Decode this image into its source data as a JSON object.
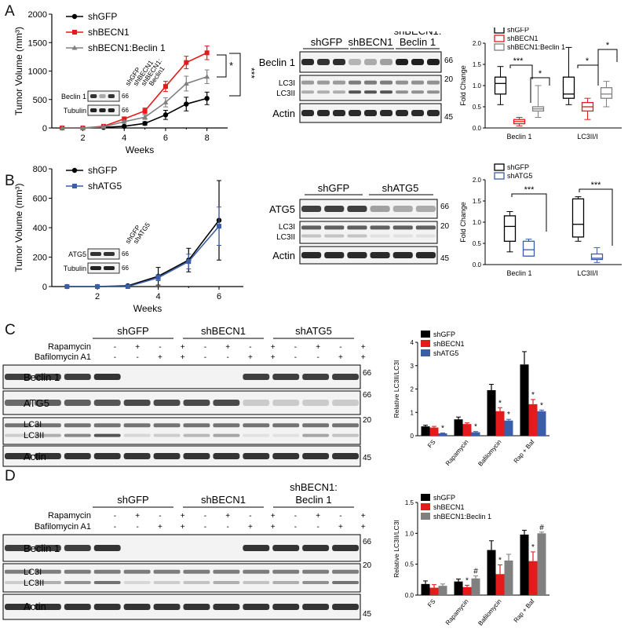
{
  "figure": {
    "panel_labels": [
      "A",
      "B",
      "C",
      "D"
    ]
  },
  "colors": {
    "shGFP": "#000000",
    "shBECN1": "#e41a1c",
    "shBECN1_rescue": "#808080",
    "shATG5": "#3a5ea8"
  },
  "panelA": {
    "growth": {
      "ylabel": "Tumor Volume (mm³)",
      "xlabel": "Weeks",
      "legend": [
        "shGFP",
        "shBECN1",
        "shBECN1:Beclin 1"
      ],
      "sig": [
        "*",
        "***"
      ],
      "inset": {
        "lanes": [
          "shGFP",
          "shBECN1",
          "shBECN1:",
          "Beclin1"
        ],
        "rows": [
          "Beclin 1",
          "Tubulin"
        ],
        "mw": [
          "66",
          "66"
        ]
      }
    },
    "blot": {
      "groups": [
        "shGFP",
        "shBECN1",
        "shBECN1:",
        "Beclin 1"
      ],
      "rows": [
        "Beclin 1",
        "LC3I",
        "LC3II",
        "Actin"
      ],
      "mw": [
        "66",
        "20",
        "45"
      ]
    },
    "box": {
      "ylabel": "Fold Change",
      "legend": [
        "shGFP",
        "shBECN1",
        "shBECN1:Beclin 1"
      ],
      "categories": [
        "Beclin 1",
        "LC3II/I"
      ],
      "sig": [
        "***",
        "*",
        "*",
        "*"
      ]
    }
  },
  "panelB": {
    "growth": {
      "ylabel": "Tumor Volume (mm³)",
      "xlabel": "Weeks",
      "legend": [
        "shGFP",
        "shATG5"
      ],
      "inset": {
        "lanes": [
          "shGFP",
          "shATG5"
        ],
        "rows": [
          "ATG5",
          "Tubulin"
        ],
        "mw": [
          "66",
          "66"
        ]
      }
    },
    "blot": {
      "groups": [
        "shGFP",
        "shATG5"
      ],
      "rows": [
        "ATG5",
        "LC3I",
        "LC3II",
        "Actin"
      ],
      "mw": [
        "66",
        "20",
        "45"
      ]
    },
    "box": {
      "ylabel": "Fold Change",
      "legend": [
        "shGFP",
        "shATG5"
      ],
      "categories": [
        "Beclin 1",
        "LC3II/I"
      ],
      "sig": [
        "***",
        "***"
      ]
    }
  },
  "panelC": {
    "blot": {
      "groups": [
        "shGFP",
        "shBECN1",
        "shATG5"
      ],
      "treatments": [
        "Rapamycin",
        "Bafilomycin A1"
      ],
      "rows": [
        "Beclin 1",
        "ATG5",
        "LC3I",
        "LC3II",
        "Actin"
      ],
      "mw": [
        "66",
        "66",
        "20",
        "45"
      ]
    },
    "bar": {
      "ylabel": "Relative LC3II/LC3I",
      "legend": [
        "shGFP",
        "shBECN1",
        "shATG5"
      ]
    }
  },
  "panelD": {
    "blot": {
      "groups": [
        "shGFP",
        "shBECN1",
        "shBECN1:",
        "Beclin 1"
      ],
      "treatments": [
        "Rapamycin",
        "Bafilomycin A1"
      ],
      "rows": [
        "Beclin 1",
        "LC3I",
        "LC3II",
        "Actin"
      ],
      "mw": [
        "66",
        "20",
        "45"
      ]
    },
    "bar": {
      "ylabel": "Relative LC3II/LC3I",
      "legend": [
        "shGFP",
        "shBECN1",
        "shBECN1:Beclin 1"
      ]
    }
  },
  "chart_data": [
    {
      "id": "A-growth",
      "type": "line",
      "x": [
        1,
        2,
        3,
        4,
        5,
        6,
        7,
        8
      ],
      "xticks": [
        "2",
        "4",
        "6",
        "8"
      ],
      "yticks": [
        "0",
        "500",
        "1000",
        "1500",
        "2000"
      ],
      "ylim": [
        0,
        2000
      ],
      "xlim": [
        0.5,
        9
      ],
      "ylabel": "Tumor Volume (mm³)",
      "xlabel": "Weeks",
      "series": [
        {
          "name": "shGFP",
          "values": [
            0,
            0,
            10,
            30,
            80,
            230,
            420,
            520
          ],
          "err": [
            0,
            0,
            5,
            10,
            30,
            80,
            120,
            110
          ]
        },
        {
          "name": "shBECN1",
          "values": [
            0,
            0,
            30,
            160,
            300,
            730,
            1150,
            1320
          ],
          "err": [
            0,
            0,
            10,
            30,
            50,
            90,
            110,
            120
          ]
        },
        {
          "name": "shBECN1:Beclin 1",
          "values": [
            0,
            0,
            20,
            110,
            190,
            450,
            780,
            900
          ],
          "err": [
            0,
            0,
            10,
            25,
            40,
            80,
            130,
            120
          ]
        }
      ]
    },
    {
      "id": "B-growth",
      "type": "line",
      "x": [
        1,
        2,
        3,
        4,
        5,
        6
      ],
      "xticks": [
        "2",
        "4",
        "6"
      ],
      "yticks": [
        "0",
        "200",
        "400",
        "600",
        "800"
      ],
      "ylim": [
        0,
        800
      ],
      "xlim": [
        0.5,
        6.8
      ],
      "ylabel": "Tumor Volume (mm³)",
      "xlabel": "Weeks",
      "series": [
        {
          "name": "shGFP",
          "values": [
            0,
            0,
            5,
            70,
            180,
            450
          ],
          "err": [
            0,
            0,
            5,
            60,
            80,
            270
          ]
        },
        {
          "name": "shATG5",
          "values": [
            0,
            0,
            0,
            60,
            170,
            410
          ],
          "err": [
            0,
            0,
            0,
            20,
            50,
            130
          ]
        }
      ]
    },
    {
      "id": "A-box",
      "type": "box",
      "categories": [
        "Beclin 1",
        "LC3II/I"
      ],
      "yticks": [
        "0.0",
        "0.5",
        "1.0",
        "1.5",
        "2.0"
      ],
      "ylim": [
        0,
        2
      ],
      "ylabel": "Fold Change",
      "series": [
        {
          "name": "shGFP",
          "boxes": [
            [
              0.55,
              0.8,
              1.05,
              1.2,
              1.45
            ],
            [
              0.55,
              0.7,
              0.8,
              1.2,
              1.9
            ]
          ]
        },
        {
          "name": "shBECN1",
          "boxes": [
            [
              0.05,
              0.1,
              0.15,
              0.2,
              0.25
            ],
            [
              0.2,
              0.4,
              0.5,
              0.6,
              0.7
            ]
          ]
        },
        {
          "name": "shBECN1:Beclin 1",
          "boxes": [
            [
              0.25,
              0.4,
              0.45,
              0.5,
              1.0
            ],
            [
              0.5,
              0.7,
              0.8,
              0.95,
              1.1
            ]
          ]
        }
      ]
    },
    {
      "id": "B-box",
      "type": "box",
      "categories": [
        "Beclin 1",
        "LC3II/I"
      ],
      "yticks": [
        "0.0",
        "0.5",
        "1.0",
        "1.5",
        "2.0"
      ],
      "ylim": [
        0,
        2
      ],
      "ylabel": "Fold Change",
      "series": [
        {
          "name": "shGFP",
          "boxes": [
            [
              0.3,
              0.55,
              0.9,
              1.15,
              1.25
            ],
            [
              0.55,
              0.65,
              0.95,
              1.55,
              1.6
            ]
          ]
        },
        {
          "name": "shATG5",
          "boxes": [
            [
              0.2,
              0.2,
              0.35,
              0.55,
              0.6
            ],
            [
              0.05,
              0.12,
              0.15,
              0.25,
              0.4
            ]
          ]
        }
      ]
    },
    {
      "id": "C-bar",
      "type": "bar",
      "categories": [
        "FS",
        "Rapamycin",
        "Bafilomycin",
        "Rap + Baf"
      ],
      "yticks": [
        "0",
        "1",
        "2",
        "3",
        "4"
      ],
      "ylim": [
        0,
        4
      ],
      "ylabel": "Relative LC3II/LC3I",
      "series": [
        {
          "name": "shGFP",
          "values": [
            0.4,
            0.7,
            1.95,
            3.05
          ],
          "err": [
            0.05,
            0.1,
            0.25,
            0.55
          ],
          "sig": [
            "",
            "",
            "",
            ""
          ]
        },
        {
          "name": "shBECN1",
          "values": [
            0.35,
            0.5,
            1.05,
            1.35
          ],
          "err": [
            0.05,
            0.05,
            0.15,
            0.2
          ],
          "sig": [
            "",
            "",
            "*",
            "*"
          ]
        },
        {
          "name": "shATG5",
          "values": [
            0.1,
            0.15,
            0.65,
            1.05
          ],
          "err": [
            0.02,
            0.03,
            0.05,
            0.05
          ],
          "sig": [
            "*",
            "*",
            "*",
            "*"
          ]
        }
      ]
    },
    {
      "id": "D-bar",
      "type": "bar",
      "categories": [
        "FS",
        "Rapamycin",
        "Bafilomycin",
        "Rap + Baf"
      ],
      "yticks": [
        "0.0",
        "0.5",
        "1.0",
        "1.5"
      ],
      "ylim": [
        0,
        1.5
      ],
      "ylabel": "Relative LC3II/LC3I",
      "series": [
        {
          "name": "shGFP",
          "values": [
            0.18,
            0.22,
            0.73,
            0.98
          ],
          "err": [
            0.05,
            0.04,
            0.15,
            0.07
          ],
          "sig": [
            "",
            "",
            "",
            ""
          ]
        },
        {
          "name": "shBECN1",
          "values": [
            0.12,
            0.13,
            0.34,
            0.55
          ],
          "err": [
            0.05,
            0.03,
            0.15,
            0.15
          ],
          "sig": [
            "",
            "*",
            "*",
            "*"
          ]
        },
        {
          "name": "shBECN1:Beclin 1",
          "values": [
            0.15,
            0.27,
            0.56,
            1.0
          ],
          "err": [
            0.03,
            0.04,
            0.1,
            0.02
          ],
          "sig": [
            "",
            "#",
            "",
            "#"
          ]
        }
      ]
    }
  ]
}
